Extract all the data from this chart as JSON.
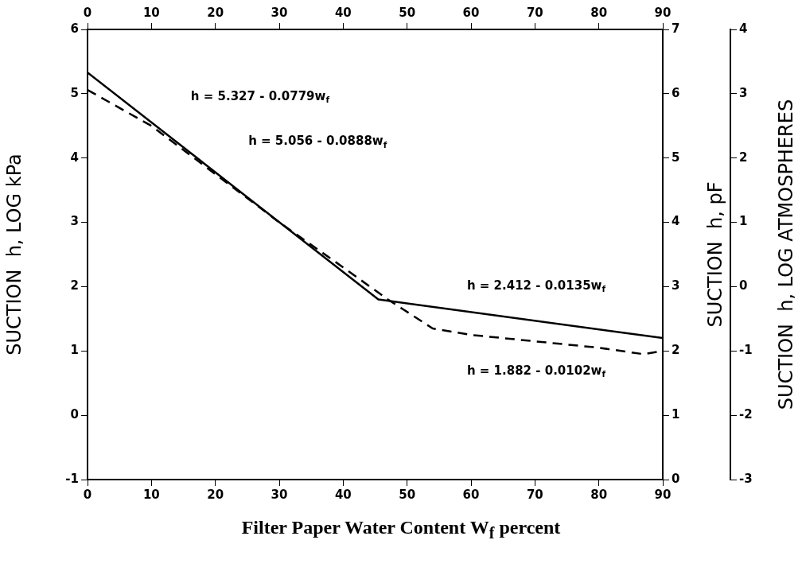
{
  "chart_data": {
    "type": "line",
    "xlabel": "Filter Paper Water Content W$_{f}$  percent",
    "ylabel": "SUCTION  h, LOG kPa",
    "y2label": "SUCTION  h, pF",
    "y3label": "SUCTION  h, LOG ATMOSPHERES",
    "xlim": [
      0,
      90
    ],
    "xticks": [
      0,
      10,
      20,
      30,
      40,
      50,
      60,
      70,
      80,
      90
    ],
    "x2lim": [
      0,
      90
    ],
    "x2ticks": [
      0,
      10,
      20,
      30,
      40,
      50,
      60,
      70,
      80,
      90
    ],
    "ylim": [
      -1,
      6
    ],
    "yticks": [
      -1,
      0,
      1,
      2,
      3,
      4,
      5,
      6
    ],
    "y2lim": [
      0,
      7
    ],
    "y2ticks": [
      0,
      1,
      2,
      3,
      4,
      5,
      6,
      7
    ],
    "y3lim": [
      -3,
      4
    ],
    "y3ticks": [
      -3,
      -2,
      -1,
      0,
      1,
      2,
      3,
      4
    ],
    "series": [
      {
        "color": "#000000",
        "line_style": "solid",
        "x": [
          0,
          45.5,
          90
        ],
        "values": [
          5.33,
          1.8,
          1.2
        ]
      },
      {
        "color": "#000000",
        "line_style": "dashed",
        "x": [
          0,
          10,
          20,
          30,
          40,
          47,
          54,
          60,
          70,
          80,
          87,
          90
        ],
        "values": [
          5.06,
          4.5,
          3.75,
          3.0,
          2.3,
          1.8,
          1.35,
          1.25,
          1.15,
          1.05,
          0.95,
          1.0
        ]
      }
    ],
    "annotations": [
      "h = 5.327 - 0.0779w$_{f}$",
      "h = 5.056 - 0.0888w$_{f}$",
      "h = 2.412 - 0.0135w$_{f}$",
      "h = 1.882 - 0.0102w$_{f}$"
    ]
  }
}
